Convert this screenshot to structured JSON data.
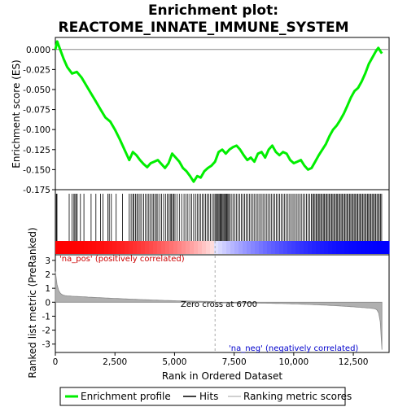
{
  "chart_data": {
    "type": "line",
    "title_line1": "Enrichment plot:",
    "title_line2": "REACTOME_INNATE_IMMUNE_SYSTEM",
    "es_ylabel": "Enrichment score (ES)",
    "rank_ylabel": "Ranked list metric (PreRanked)",
    "xlabel": "Rank in Ordered Dataset",
    "xlim": [
      0,
      14000
    ],
    "es_ylim": [
      -0.175,
      0.015
    ],
    "rank_ylim": [
      -3.6,
      3.4
    ],
    "x_ticks": [
      0,
      2500,
      5000,
      7500,
      10000,
      12500
    ],
    "x_tick_labels": [
      "0",
      "2,500",
      "5,000",
      "7,500",
      "10,000",
      "12,500"
    ],
    "es_ticks": [
      0.0,
      -0.025,
      -0.05,
      -0.075,
      -0.1,
      -0.125,
      -0.15,
      -0.175
    ],
    "es_tick_labels": [
      "0.000",
      "-0.025",
      "-0.050",
      "-0.075",
      "-0.100",
      "-0.125",
      "-0.150",
      "-0.175"
    ],
    "rank_ticks": [
      3,
      2,
      1,
      0,
      -1,
      -2,
      -3
    ],
    "rank_tick_labels": [
      "3",
      "2",
      "1",
      "0",
      "-1",
      "-2",
      "-3"
    ],
    "zero_cross_rank": 6700,
    "zero_cross_label": "Zero cross at 6700",
    "pos_label": "'na_pos' (positively correlated)",
    "neg_label": "'na_neg' (negatively correlated)",
    "es_curve": {
      "x": [
        0,
        80,
        200,
        350,
        500,
        700,
        900,
        1100,
        1300,
        1500,
        1700,
        1900,
        2100,
        2300,
        2500,
        2700,
        2900,
        3100,
        3250,
        3400,
        3550,
        3700,
        3850,
        4000,
        4150,
        4300,
        4450,
        4600,
        4750,
        4900,
        5050,
        5200,
        5350,
        5500,
        5650,
        5800,
        5950,
        6100,
        6250,
        6400,
        6550,
        6700,
        6850,
        7000,
        7150,
        7300,
        7450,
        7600,
        7750,
        7900,
        8050,
        8200,
        8350,
        8500,
        8650,
        8800,
        8950,
        9100,
        9250,
        9400,
        9550,
        9700,
        9850,
        10000,
        10150,
        10300,
        10450,
        10600,
        10750,
        10900,
        11050,
        11200,
        11350,
        11500,
        11650,
        11800,
        11950,
        12100,
        12250,
        12400,
        12550,
        12700,
        12850,
        13000,
        13150,
        13300,
        13450,
        13550,
        13650,
        13700
      ],
      "y": [
        0.0,
        0.01,
        0.0,
        -0.012,
        -0.022,
        -0.03,
        -0.028,
        -0.035,
        -0.045,
        -0.055,
        -0.065,
        -0.075,
        -0.085,
        -0.09,
        -0.1,
        -0.112,
        -0.125,
        -0.138,
        -0.128,
        -0.132,
        -0.138,
        -0.143,
        -0.147,
        -0.142,
        -0.14,
        -0.138,
        -0.143,
        -0.148,
        -0.142,
        -0.13,
        -0.135,
        -0.14,
        -0.148,
        -0.152,
        -0.158,
        -0.165,
        -0.158,
        -0.16,
        -0.152,
        -0.148,
        -0.145,
        -0.14,
        -0.128,
        -0.125,
        -0.13,
        -0.125,
        -0.122,
        -0.12,
        -0.125,
        -0.132,
        -0.138,
        -0.135,
        -0.14,
        -0.13,
        -0.128,
        -0.135,
        -0.125,
        -0.12,
        -0.128,
        -0.132,
        -0.128,
        -0.13,
        -0.138,
        -0.142,
        -0.14,
        -0.138,
        -0.145,
        -0.15,
        -0.148,
        -0.14,
        -0.132,
        -0.125,
        -0.118,
        -0.108,
        -0.1,
        -0.095,
        -0.088,
        -0.08,
        -0.07,
        -0.06,
        -0.052,
        -0.048,
        -0.04,
        -0.03,
        -0.018,
        -0.01,
        -0.002,
        0.002,
        -0.003,
        -0.005
      ]
    },
    "hits": [
      40,
      70,
      580,
      700,
      780,
      820,
      870,
      920,
      1050,
      1200,
      1500,
      1700,
      1900,
      2000,
      2200,
      2260,
      2350,
      2550,
      2820,
      3100,
      3180,
      3250,
      3300,
      3360,
      3420,
      3480,
      3550,
      3620,
      3700,
      3780,
      3850,
      3920,
      3990,
      4060,
      4120,
      4180,
      4240,
      4300,
      4380,
      4460,
      4540,
      4620,
      4700,
      4760,
      4820,
      4870,
      4920,
      4970,
      5020,
      5100,
      5200,
      5300,
      5400,
      5480,
      5560,
      5640,
      5720,
      5800,
      5880,
      5950,
      6020,
      6090,
      6160,
      6230,
      6300,
      6370,
      6440,
      6510,
      6580,
      6650,
      6700,
      6750,
      6790,
      6830,
      6870,
      6910,
      6950,
      6990,
      7030,
      7070,
      7110,
      7150,
      7190,
      7230,
      7270,
      7310,
      7380,
      7450,
      7520,
      7590,
      7660,
      7730,
      7800,
      7870,
      7940,
      8010,
      8080,
      8150,
      8220,
      8290,
      8360,
      8430,
      8500,
      8570,
      8640,
      8710,
      8780,
      8850,
      8920,
      8990,
      9060,
      9130,
      9200,
      9270,
      9340,
      9410,
      9480,
      9550,
      9620,
      9690,
      9760,
      9830,
      9900,
      9970,
      10040,
      10110,
      10180,
      10250,
      10320,
      10390,
      10460,
      10530,
      10600,
      10670,
      10740,
      10790,
      10840,
      10890,
      10940,
      10990,
      11040,
      11090,
      11140,
      11190,
      11240,
      11290,
      11340,
      11390,
      11440,
      11490,
      11540,
      11590,
      11640,
      11690,
      11740,
      11790,
      11840,
      11890,
      11940,
      11990,
      12040,
      12090,
      12140,
      12190,
      12240,
      12290,
      12340,
      12390,
      12440,
      12490,
      12540,
      12590,
      12640,
      12690,
      12740,
      12790,
      12840,
      12890,
      12940,
      12990,
      13040,
      13090,
      13140,
      13190,
      13240,
      13290,
      13340,
      13390,
      13440,
      13490,
      13540,
      13590,
      13640,
      13690
    ],
    "legend": [
      "Enrichment profile",
      "Hits",
      "Ranking metric scores"
    ],
    "colors": {
      "es_line": "#00ee00",
      "hit": "#000000",
      "pos_band": "#ff0000",
      "neg_band": "#0000ff",
      "metric_fill": "#b0b0b0",
      "zero_line": "#aaaaaa",
      "pos_text": "#cc0000",
      "neg_text": "#0000cc"
    }
  }
}
